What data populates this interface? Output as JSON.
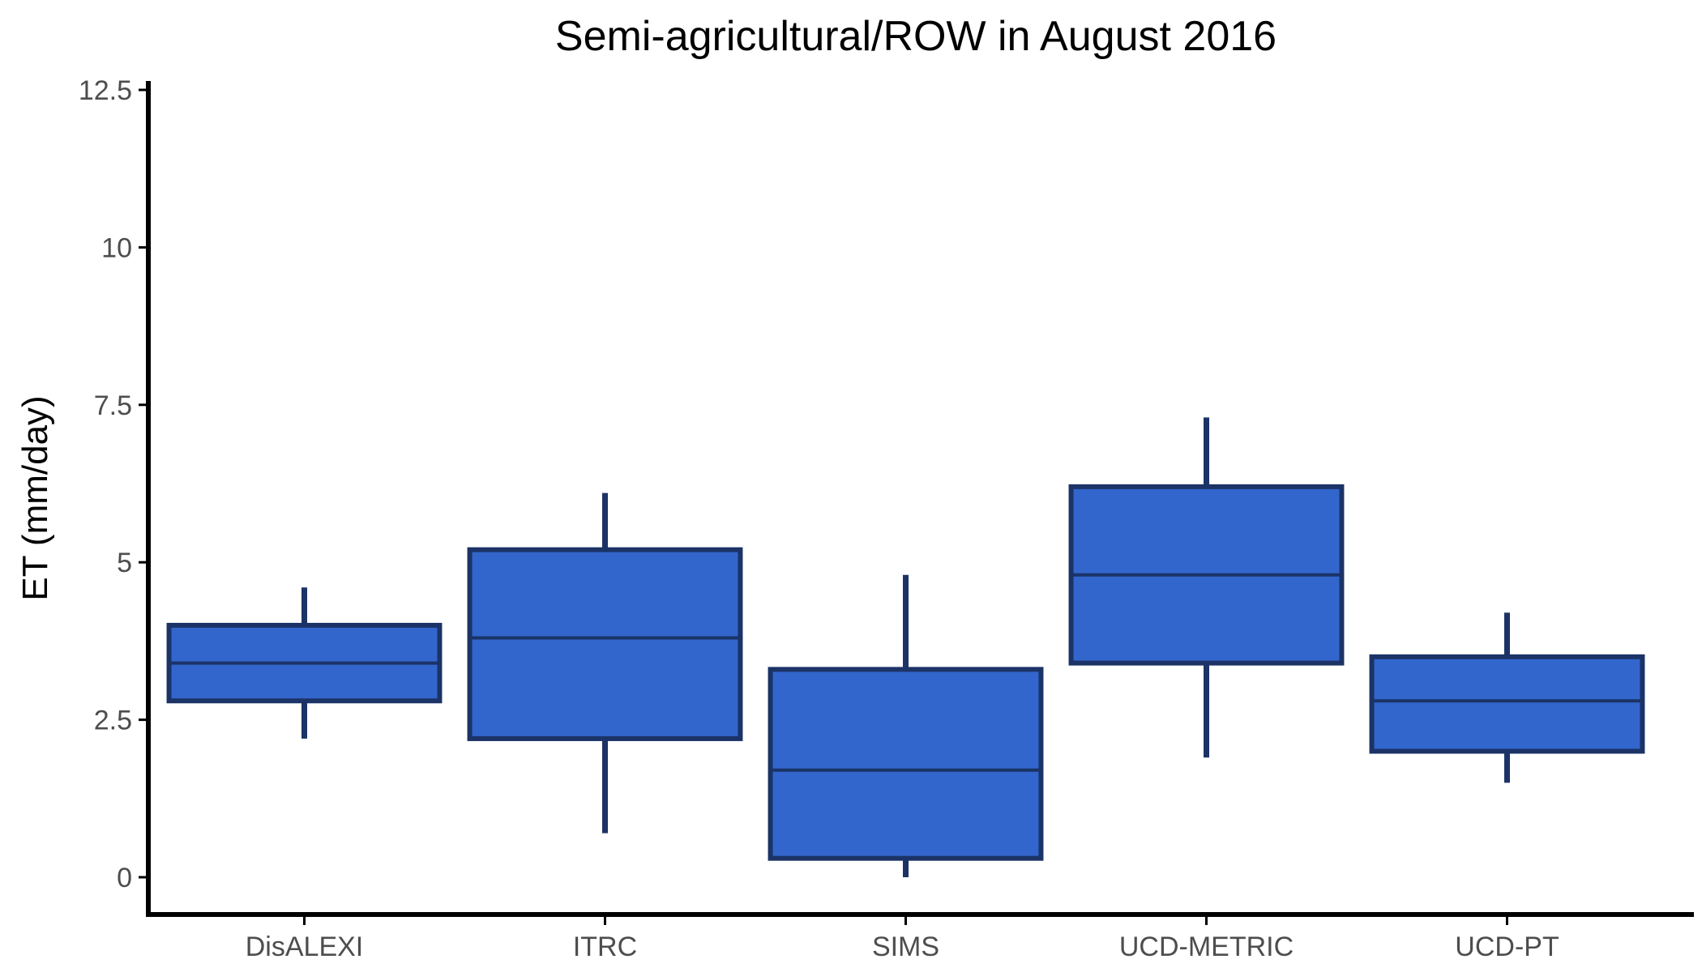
{
  "chart_data": {
    "type": "box",
    "title": "Semi-agricultural/ROW in August 2016",
    "xlabel": "",
    "ylabel": "ET (mm/day)",
    "ylim": [
      -0.6,
      12.6
    ],
    "yticks": [
      {
        "value": 0,
        "label": "0"
      },
      {
        "value": 2.5,
        "label": "2.5"
      },
      {
        "value": 5,
        "label": "5"
      },
      {
        "value": 7.5,
        "label": "7.5"
      },
      {
        "value": 10,
        "label": "10"
      },
      {
        "value": 12.5,
        "label": "12.5"
      }
    ],
    "categories": [
      "DisALEXI",
      "ITRC",
      "SIMS",
      "UCD-METRIC",
      "UCD-PT"
    ],
    "boxes": [
      {
        "category": "DisALEXI",
        "whisker_low": 2.2,
        "q1": 2.8,
        "median": 3.4,
        "q3": 4.0,
        "whisker_high": 4.6
      },
      {
        "category": "ITRC",
        "whisker_low": 0.7,
        "q1": 2.2,
        "median": 3.8,
        "q3": 5.2,
        "whisker_high": 6.1
      },
      {
        "category": "SIMS",
        "whisker_low": 0.0,
        "q1": 0.3,
        "median": 1.7,
        "q3": 3.3,
        "whisker_high": 4.8
      },
      {
        "category": "UCD-METRIC",
        "whisker_low": 1.9,
        "q1": 3.4,
        "median": 4.8,
        "q3": 6.2,
        "whisker_high": 7.3
      },
      {
        "category": "UCD-PT",
        "whisker_low": 1.5,
        "q1": 2.0,
        "median": 2.8,
        "q3": 3.5,
        "whisker_high": 4.2
      }
    ],
    "colors": {
      "box_fill": "#3366cc",
      "box_stroke": "#1b3366",
      "axis": "#000000",
      "tick_text": "#4d4d4d"
    },
    "grid": false,
    "legend": "none"
  }
}
